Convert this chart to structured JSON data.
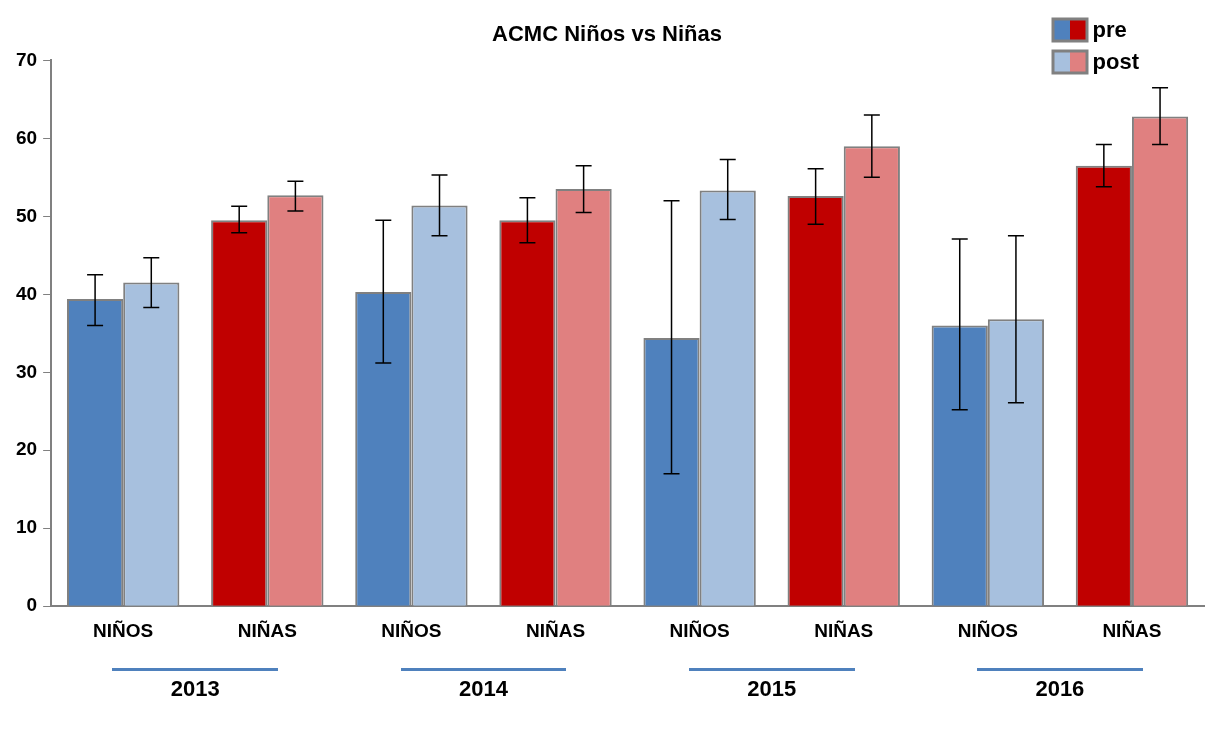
{
  "chart_data": {
    "type": "bar",
    "title": "ACMC Niños vs Niñas",
    "categories": [
      "NIÑOS",
      "NIÑAS",
      "NIÑOS",
      "NIÑAS",
      "NIÑOS",
      "NIÑAS",
      "NIÑOS",
      "NIÑAS"
    ],
    "series": [
      {
        "name": "pre",
        "colors": [
          "#4f81bd",
          "#c00000",
          "#4f81bd",
          "#c00000",
          "#4f81bd",
          "#c00000",
          "#4f81bd",
          "#c00000"
        ],
        "values": [
          39.4,
          49.5,
          40.3,
          49.5,
          34.4,
          52.6,
          36.0,
          56.5
        ],
        "errors": [
          [
            36.0,
            42.5
          ],
          [
            47.9,
            51.3
          ],
          [
            31.2,
            49.5
          ],
          [
            46.6,
            52.4
          ],
          [
            17.0,
            52.0
          ],
          [
            49.0,
            56.1
          ],
          [
            25.2,
            47.1
          ],
          [
            53.8,
            59.2
          ]
        ]
      },
      {
        "name": "post",
        "colors": [
          "#a7c0de",
          "#e08080",
          "#a7c0de",
          "#e08080",
          "#a7c0de",
          "#e08080",
          "#a7c0de",
          "#e08080"
        ],
        "values": [
          41.5,
          52.7,
          51.4,
          53.5,
          53.3,
          59.0,
          36.8,
          62.8
        ],
        "errors": [
          [
            38.3,
            44.7
          ],
          [
            50.7,
            54.5
          ],
          [
            47.5,
            55.3
          ],
          [
            50.5,
            56.5
          ],
          [
            49.6,
            57.3
          ],
          [
            55.0,
            63.0
          ],
          [
            26.1,
            47.5
          ],
          [
            59.2,
            66.5
          ]
        ]
      }
    ],
    "annotations": [
      "2013",
      "2014",
      "2015",
      "2016"
    ],
    "ylim": [
      0,
      70
    ],
    "yticks": [
      0,
      10,
      20,
      30,
      40,
      50,
      60,
      70
    ],
    "grid": false,
    "legend": "top right"
  }
}
